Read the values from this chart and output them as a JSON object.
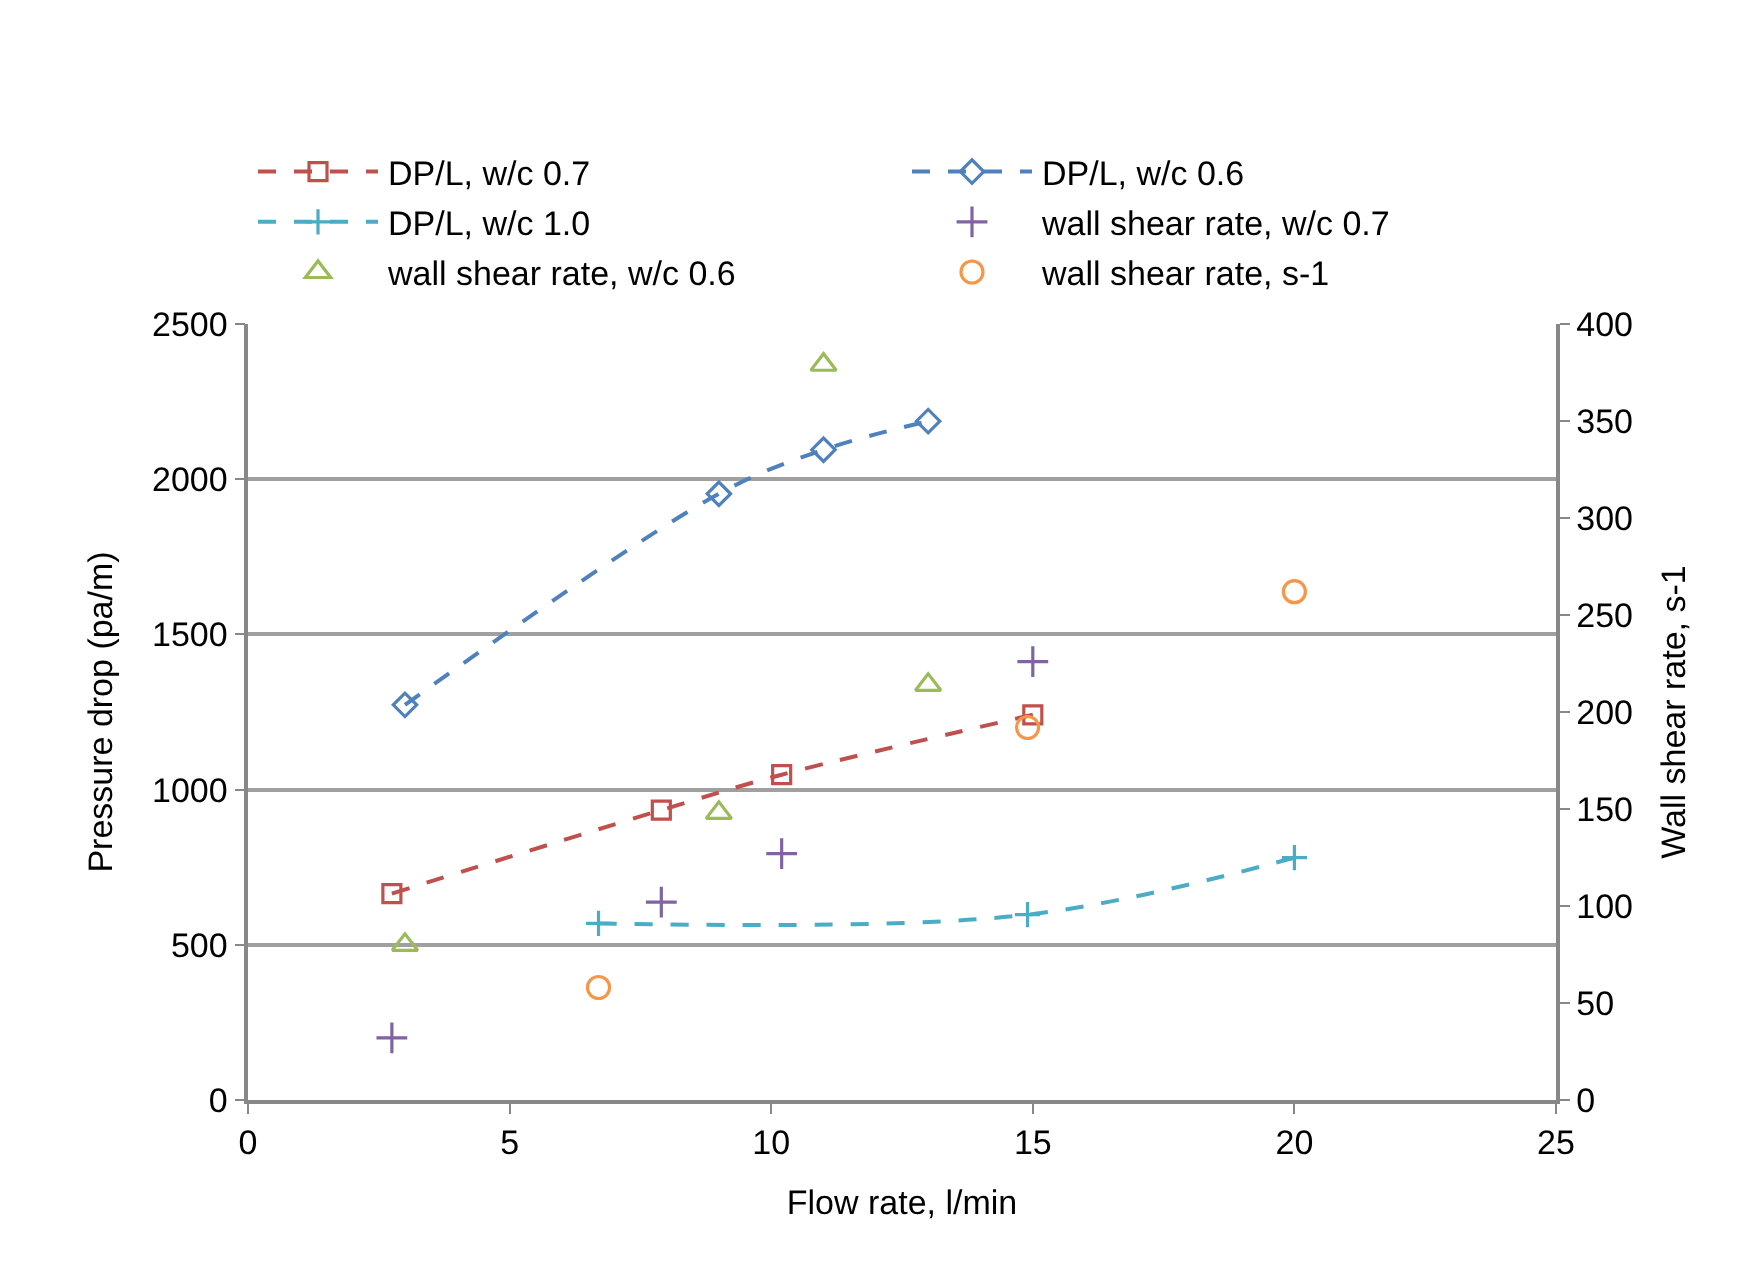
{
  "chart_data": {
    "type": "line",
    "xlabel": "Flow rate, l/min",
    "ylabel": "Pressure drop (pa/m)",
    "y2label": "Wall shear rate, s-1",
    "xlim": [
      0,
      25
    ],
    "xticks": [
      0,
      5,
      10,
      15,
      20,
      25
    ],
    "ylim": [
      0,
      2500
    ],
    "yticks": [
      0,
      500,
      1000,
      1500,
      2000,
      2500
    ],
    "y2lim": [
      0,
      400
    ],
    "y2ticks": [
      0,
      50,
      100,
      150,
      200,
      250,
      300,
      350,
      400
    ],
    "grid": "y",
    "legend": "top",
    "series": [
      {
        "name": "DP/L, w/c 0.7",
        "color": "#c0504d",
        "marker": "square",
        "line_style": "dashed",
        "x": [
          2.75,
          7.9,
          10.2,
          15.0
        ],
        "values": [
          665,
          934,
          1048,
          1241
        ]
      },
      {
        "name": "DP/L, w/c 0.6",
        "color": "#4f81bd",
        "marker": "diamond",
        "line_style": "dashed",
        "x": [
          3.0,
          9.0,
          11.0,
          13.0
        ],
        "values": [
          1273,
          1953,
          2095,
          2187
        ]
      },
      {
        "name": "DP/L, w/c 1.0",
        "color": "#4bacc6",
        "marker": "cross",
        "line_style": "dashed",
        "x": [
          6.7,
          14.9,
          20.0
        ],
        "values": [
          569,
          597,
          781
        ]
      },
      {
        "name": "wall shear rate, w/c 0.7",
        "type": "scatter",
        "axis": "y2",
        "color": "#8064a2",
        "marker": "cross",
        "x": [
          2.75,
          7.9,
          10.2,
          15.0
        ],
        "values": [
          32,
          102,
          127,
          226
        ]
      },
      {
        "name": "wall shear rate, w/c 0.6",
        "type": "scatter",
        "axis": "y2",
        "color": "#9bbb59",
        "marker": "triangle",
        "x": [
          3.0,
          9.0,
          11.0,
          13.0
        ],
        "values": [
          80,
          148,
          379,
          214
        ]
      },
      {
        "name": "wall shear rate, s-1",
        "type": "scatter",
        "axis": "y2",
        "color": "#f79646",
        "marker": "circle",
        "x": [
          6.7,
          14.9,
          20.0
        ],
        "values": [
          58,
          192,
          262
        ]
      }
    ]
  }
}
